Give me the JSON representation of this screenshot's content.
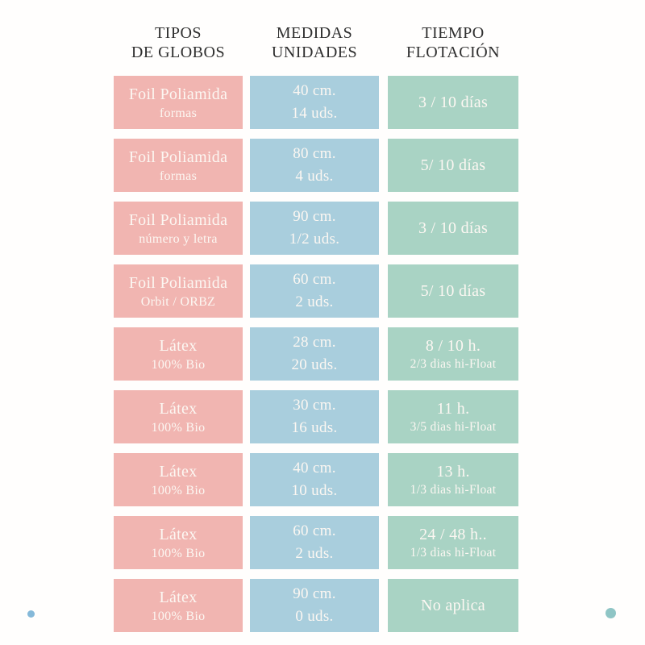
{
  "colors": {
    "page_bg": "#fffefd",
    "pink": "#f1b5b1",
    "blue": "#a9cedd",
    "green": "#a9d3c4",
    "header_text": "#2f2f2f",
    "cell_text": "#fcf7f2",
    "dot_blue": "#85b9d9",
    "dot_teal": "#8fc5c5"
  },
  "chart_data": {
    "type": "table",
    "title": "Tabla de tipos de globos, medidas y tiempo de flotación",
    "columns": [
      {
        "line1": "TIPOS",
        "line2": "DE GLOBOS"
      },
      {
        "line1": "MEDIDAS",
        "line2": "UNIDADES"
      },
      {
        "line1": "TIEMPO",
        "line2": "FLOTACIÓN"
      }
    ],
    "rows": [
      {
        "tipo": {
          "line1": "Foil Poliamida",
          "line2": "formas"
        },
        "medidas": {
          "line1": "40 cm.",
          "line2": "14 uds."
        },
        "tiempo": {
          "line1": "3 / 10 días",
          "line2": ""
        }
      },
      {
        "tipo": {
          "line1": "Foil Poliamida",
          "line2": "formas"
        },
        "medidas": {
          "line1": "80 cm.",
          "line2": "4 uds."
        },
        "tiempo": {
          "line1": "5/ 10 días",
          "line2": ""
        }
      },
      {
        "tipo": {
          "line1": "Foil Poliamida",
          "line2": "número y letra"
        },
        "medidas": {
          "line1": "90 cm.",
          "line2": "1/2 uds."
        },
        "tiempo": {
          "line1": "3 / 10 días",
          "line2": ""
        }
      },
      {
        "tipo": {
          "line1": "Foil Poliamida",
          "line2": "Orbit / ORBZ"
        },
        "medidas": {
          "line1": "60 cm.",
          "line2": "2 uds."
        },
        "tiempo": {
          "line1": "5/ 10 días",
          "line2": ""
        }
      },
      {
        "tipo": {
          "line1": "Látex",
          "line2": "100% Bio"
        },
        "medidas": {
          "line1": "28 cm.",
          "line2": "20 uds."
        },
        "tiempo": {
          "line1": "8 / 10 h.",
          "line2": "2/3 dias hi-Float"
        }
      },
      {
        "tipo": {
          "line1": "Látex",
          "line2": "100% Bio"
        },
        "medidas": {
          "line1": "30 cm.",
          "line2": "16 uds."
        },
        "tiempo": {
          "line1": "11 h.",
          "line2": "3/5 dias hi-Float"
        }
      },
      {
        "tipo": {
          "line1": "Látex",
          "line2": "100% Bio"
        },
        "medidas": {
          "line1": "40 cm.",
          "line2": "10 uds."
        },
        "tiempo": {
          "line1": "13 h.",
          "line2": "1/3 dias hi-Float"
        }
      },
      {
        "tipo": {
          "line1": "Látex",
          "line2": "100% Bio"
        },
        "medidas": {
          "line1": "60 cm.",
          "line2": "2 uds."
        },
        "tiempo": {
          "line1": "24 / 48 h..",
          "line2": "1/3 dias hi-Float"
        }
      },
      {
        "tipo": {
          "line1": "Látex",
          "line2": "100% Bio"
        },
        "medidas": {
          "line1": "90 cm.",
          "line2": "0 uds."
        },
        "tiempo": {
          "line1": "No aplica",
          "line2": ""
        }
      }
    ]
  }
}
